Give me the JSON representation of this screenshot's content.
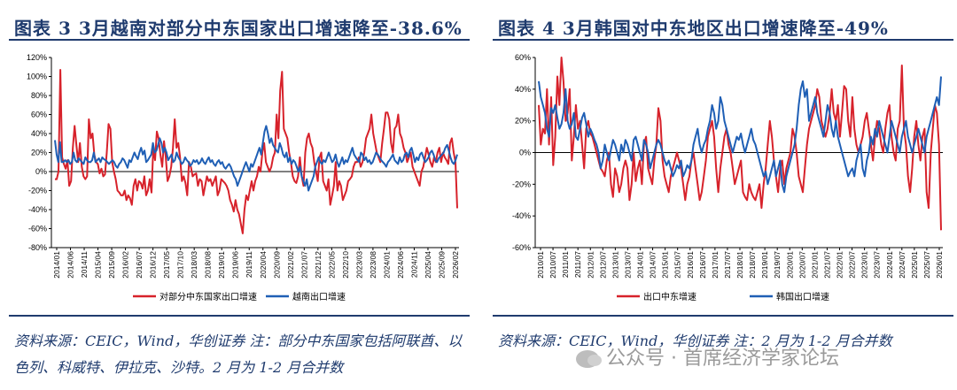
{
  "panels": [
    {
      "title": "图表 3   3月越南对部分中东国家出口增速降至-38.6%",
      "source": "资料来源：CEIC，Wind，华创证券   注：部分中东国家包括阿联酋、以色列、科威特、伊拉克、沙特。2 月为 1-2 月合并数"
    },
    {
      "title": "图表 4   3月韩国对中东地区出口增速降至-49%",
      "source": "资料来源：CEIC，Wind，华创证券   注：2 月为 1-2 月合并数"
    }
  ],
  "watermark": "公众号 · 首席经济学家论坛",
  "chart_data": [
    {
      "type": "line",
      "ylim": [
        -80,
        120
      ],
      "yticks": [
        -80,
        -60,
        -40,
        -20,
        0,
        20,
        40,
        60,
        80,
        100,
        120
      ],
      "ytick_labels": [
        "-80%",
        "-60%",
        "-40%",
        "-20%",
        "0%",
        "20%",
        "40%",
        "60%",
        "80%",
        "100%",
        "120%"
      ],
      "xtick_labels": [
        "2014/01",
        "2014/06",
        "2014/11",
        "2015/04",
        "2015/09",
        "2016/02",
        "2016/07",
        "2016/12",
        "2017/05",
        "2017/10",
        "2018/03",
        "2018/08",
        "2019/01",
        "2019/06",
        "2019/11",
        "2020/04",
        "2020/09",
        "2021/02",
        "2021/07",
        "2021/12",
        "2022/05",
        "2022/10",
        "2023/03",
        "2023/08",
        "2024/01",
        "2024/06",
        "2024/11",
        "2025/04",
        "2025/09",
        "2026/02"
      ],
      "grid": false,
      "legend_position": "bottom",
      "series": [
        {
          "name": "对部分中东国家出口增速",
          "color": "#d7222b",
          "values": [
            -8,
            -8,
            0,
            107,
            15,
            8,
            3,
            12,
            -15,
            -10,
            25,
            48,
            28,
            10,
            30,
            5,
            -5,
            -8,
            -5,
            55,
            35,
            40,
            18,
            10,
            8,
            -2,
            3,
            -5,
            -3,
            20,
            50,
            45,
            10,
            0,
            -8,
            -20,
            -22,
            -25,
            -25,
            -20,
            -30,
            -25,
            -28,
            -35,
            -15,
            -8,
            -20,
            -10,
            -12,
            -18,
            -5,
            -25,
            -20,
            -8,
            -22,
            25,
            12,
            42,
            35,
            18,
            5,
            32,
            15,
            -10,
            -5,
            5,
            25,
            55,
            25,
            30,
            15,
            -10,
            -5,
            -12,
            -25,
            10,
            5,
            -5,
            -3,
            -2,
            -15,
            -8,
            -10,
            -25,
            -15,
            -5,
            -10,
            -8,
            -15,
            -10,
            -5,
            -25,
            -20,
            -8,
            -10,
            -12,
            -15,
            -20,
            -30,
            -35,
            -42,
            -30,
            -40,
            -45,
            -55,
            -65,
            -40,
            -25,
            -30,
            -20,
            -10,
            -20,
            -10,
            -5,
            5,
            0,
            20,
            30,
            10,
            5,
            0,
            5,
            15,
            20,
            60,
            35,
            85,
            105,
            45,
            40,
            35,
            20,
            10,
            -5,
            -10,
            -12,
            -5,
            15,
            -5,
            -15,
            20,
            35,
            40,
            30,
            25,
            10,
            0,
            -10,
            15,
            20,
            -10,
            -15,
            -20,
            -8,
            -35,
            -25,
            -15,
            10,
            -20,
            -10,
            -15,
            -30,
            -25,
            -20,
            -10,
            -8,
            -5,
            5,
            10,
            10,
            15,
            5,
            10,
            20,
            35,
            40,
            45,
            60,
            40,
            30,
            20,
            15,
            10,
            30,
            45,
            62,
            62,
            55,
            30,
            20,
            45,
            48,
            60,
            40,
            35,
            25,
            20,
            10,
            15,
            20,
            5,
            0,
            -5,
            -10,
            -15,
            0,
            5,
            15,
            25,
            18,
            10,
            5,
            15,
            10,
            20,
            25,
            10,
            20,
            15,
            12,
            8,
            30,
            35,
            20,
            10,
            -38.6
          ]
        },
        {
          "name": "越南出口增速",
          "color": "#1f5fb5",
          "values": [
            33,
            18,
            10,
            31,
            10,
            10,
            12,
            10,
            12,
            8,
            10,
            20,
            12,
            10,
            14,
            12,
            10,
            8,
            15,
            12,
            10,
            10,
            12,
            20,
            10,
            12,
            14,
            10,
            15,
            13,
            12,
            10,
            8,
            10,
            12,
            10,
            6,
            4,
            8,
            10,
            14,
            12,
            8,
            4,
            12,
            10,
            15,
            20,
            16,
            13,
            20,
            25,
            18,
            22,
            10,
            12,
            15,
            18,
            30,
            20,
            22,
            28,
            35,
            30,
            20,
            25,
            20,
            12,
            15,
            18,
            10,
            12,
            20,
            15,
            12,
            8,
            10,
            15,
            12,
            10,
            6,
            8,
            12,
            10,
            12,
            8,
            10,
            14,
            10,
            8,
            12,
            15,
            10,
            12,
            8,
            6,
            10,
            12,
            8,
            10,
            5,
            3,
            6,
            8,
            5,
            0,
            -5,
            -8,
            -15,
            -10,
            -5,
            0,
            5,
            10,
            5,
            0,
            8,
            5,
            10,
            15,
            20,
            25,
            18,
            30,
            42,
            48,
            40,
            30,
            35,
            28,
            25,
            22,
            20,
            30,
            25,
            18,
            15,
            20,
            10,
            15,
            8,
            12,
            10,
            5,
            0,
            5,
            -5,
            -10,
            -15,
            -8,
            -20,
            -15,
            -10,
            -5,
            5,
            10,
            15,
            10,
            8,
            12,
            10,
            15,
            20,
            15,
            10,
            12,
            18,
            10,
            5,
            10,
            15,
            8,
            12,
            10,
            15,
            20,
            25,
            18,
            15,
            12,
            10,
            20,
            18,
            12,
            15,
            10,
            12,
            8,
            10,
            15,
            20,
            18,
            15,
            12,
            10,
            8,
            5,
            10,
            12,
            15,
            18,
            12,
            10,
            8,
            15,
            10,
            12,
            18,
            20,
            15,
            22,
            25,
            18,
            10,
            15,
            12,
            18,
            20,
            15,
            10,
            12,
            15,
            20,
            22,
            18,
            12,
            10,
            14,
            16,
            18,
            20,
            25,
            28,
            22,
            15,
            10,
            8,
            12,
            18
          ]
        }
      ]
    },
    {
      "type": "line",
      "ylim": [
        -60,
        60
      ],
      "yticks": [
        -60,
        -40,
        -20,
        0,
        20,
        40,
        60
      ],
      "ytick_labels": [
        "-60%",
        "-40%",
        "-20%",
        "0%",
        "20%",
        "40%",
        "60%"
      ],
      "xtick_labels": [
        "2010/01",
        "2010/07",
        "2011/01",
        "2011/07",
        "2012/01",
        "2012/07",
        "2013/01",
        "2013/07",
        "2014/01",
        "2014/07",
        "2015/01",
        "2015/07",
        "2016/01",
        "2016/07",
        "2017/01",
        "2017/07",
        "2018/01",
        "2018/07",
        "2019/01",
        "2019/07",
        "2020/01",
        "2020/07",
        "2021/01",
        "2021/07",
        "2022/01",
        "2022/07",
        "2023/01",
        "2023/07",
        "2024/01",
        "2024/07",
        "2025/01",
        "2025/07",
        "2026/01"
      ],
      "grid": false,
      "legend_position": "bottom",
      "series": [
        {
          "name": "出口中东增速",
          "color": "#d7222b",
          "values": [
            30,
            5,
            15,
            12,
            40,
            5,
            35,
            -8,
            10,
            48,
            30,
            60,
            45,
            20,
            25,
            40,
            -5,
            10,
            30,
            15,
            20,
            5,
            -10,
            15,
            20,
            12,
            10,
            5,
            0,
            -5,
            -10,
            -12,
            -15,
            -5,
            0,
            -20,
            -28,
            -10,
            -15,
            -25,
            -20,
            -10,
            -5,
            -10,
            -30,
            -20,
            0,
            -18,
            -10,
            -5,
            -20,
            5,
            10,
            -10,
            -15,
            -20,
            -5,
            5,
            28,
            20,
            -5,
            -15,
            -20,
            -25,
            -15,
            -10,
            -5,
            0,
            -5,
            -10,
            -20,
            -30,
            -20,
            -15,
            -5,
            0,
            -10,
            -20,
            -30,
            -25,
            -15,
            -5,
            10,
            15,
            20,
            10,
            -10,
            -25,
            -10,
            0,
            10,
            15,
            5,
            0,
            -10,
            -20,
            -15,
            -10,
            -5,
            -25,
            -28,
            -30,
            -20,
            -25,
            -28,
            -30,
            -25,
            -20,
            -35,
            -20,
            -10,
            5,
            20,
            10,
            -5,
            -15,
            -25,
            -10,
            -5,
            -20,
            -10,
            -5,
            0,
            15,
            10,
            0,
            -15,
            -20,
            -25,
            -10,
            5,
            15,
            20,
            25,
            30,
            40,
            35,
            20,
            15,
            10,
            15,
            25,
            40,
            25,
            20,
            30,
            10,
            25,
            42,
            40,
            20,
            10,
            35,
            15,
            5,
            0,
            5,
            10,
            20,
            25,
            15,
            5,
            -5,
            10,
            20,
            15,
            5,
            0,
            15,
            25,
            30,
            10,
            0,
            -5,
            15,
            20,
            55,
            15,
            5,
            -15,
            -25,
            -10,
            10,
            20,
            5,
            -5,
            10,
            15,
            -25,
            -35,
            0,
            15,
            30,
            25,
            5,
            -49
          ]
        },
        {
          "name": "韩国出口增速",
          "color": "#1f5fb5",
          "values": [
            45,
            35,
            30,
            25,
            15,
            10,
            28,
            25,
            30,
            22,
            15,
            18,
            25,
            40,
            20,
            15,
            18,
            25,
            10,
            8,
            15,
            22,
            25,
            18,
            10,
            15,
            12,
            8,
            5,
            0,
            -10,
            -5,
            5,
            0,
            -5,
            2,
            8,
            5,
            0,
            -5,
            5,
            0,
            8,
            5,
            0,
            -5,
            8,
            10,
            5,
            0,
            -5,
            8,
            5,
            0,
            -10,
            -5,
            0,
            5,
            8,
            5,
            0,
            -5,
            -8,
            -5,
            -10,
            -15,
            -12,
            -8,
            -10,
            -5,
            -15,
            -12,
            -8,
            -10,
            -5,
            5,
            10,
            15,
            5,
            0,
            5,
            8,
            15,
            20,
            30,
            25,
            15,
            20,
            35,
            30,
            20,
            15,
            10,
            5,
            0,
            5,
            10,
            8,
            12,
            5,
            0,
            5,
            10,
            15,
            8,
            5,
            0,
            -5,
            -10,
            -15,
            -12,
            -20,
            -15,
            -10,
            -5,
            -15,
            -10,
            -5,
            -20,
            -25,
            -15,
            -10,
            -5,
            0,
            5,
            15,
            30,
            40,
            45,
            35,
            40,
            20,
            25,
            30,
            35,
            25,
            20,
            15,
            10,
            20,
            30,
            25,
            15,
            10,
            20,
            10,
            5,
            0,
            -5,
            -10,
            -15,
            -12,
            -10,
            -15,
            -5,
            0,
            5,
            -10,
            -15,
            -5,
            0,
            10,
            5,
            15,
            10,
            20,
            15,
            10,
            5,
            0,
            10,
            20,
            15,
            10,
            5,
            0,
            10,
            15,
            20,
            10,
            5,
            0,
            5,
            10,
            15,
            10,
            5,
            0,
            10,
            15,
            20,
            25,
            30,
            35,
            30,
            48
          ]
        }
      ]
    }
  ]
}
